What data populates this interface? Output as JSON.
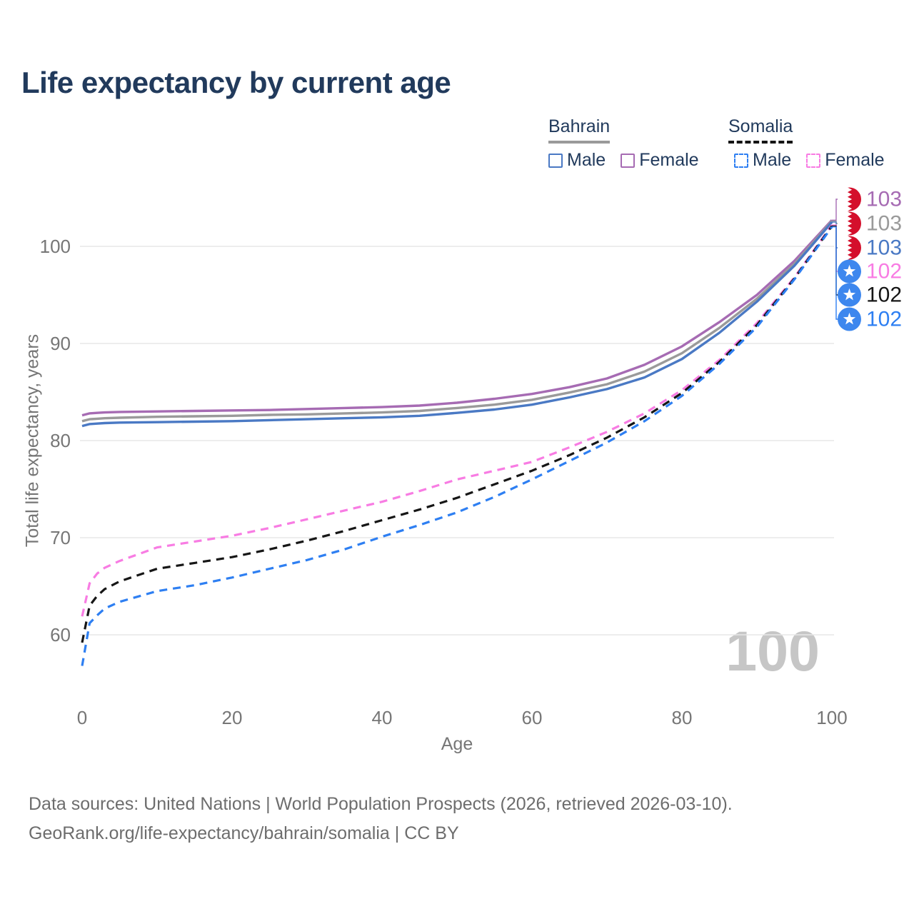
{
  "title": "Life expectancy by current age",
  "watermark": "100",
  "legend": {
    "groups": [
      {
        "name": "Bahrain",
        "style": "solid",
        "items": [
          {
            "label": "Male",
            "color": "#4a79c4"
          },
          {
            "label": "Female",
            "color": "#a66bb3"
          }
        ]
      },
      {
        "name": "Somalia",
        "style": "dashed",
        "items": [
          {
            "label": "Male",
            "color": "#2e7ff2"
          },
          {
            "label": "Female",
            "color": "#f87ce3"
          }
        ]
      }
    ]
  },
  "chart_data": {
    "type": "line",
    "title": "Life expectancy by current age",
    "xlabel": "Age",
    "ylabel": "Total life expectancy, years",
    "xlim": [
      0,
      100
    ],
    "ylim": [
      56,
      104
    ],
    "xticks": [
      0,
      20,
      40,
      60,
      80,
      100
    ],
    "yticks": [
      60,
      70,
      80,
      90,
      100
    ],
    "grid": "horizontal",
    "legend_position": "top-right",
    "x": [
      0,
      1,
      2,
      3,
      5,
      10,
      15,
      20,
      25,
      30,
      35,
      40,
      45,
      50,
      55,
      60,
      65,
      70,
      75,
      80,
      85,
      90,
      95,
      100
    ],
    "series": [
      {
        "name": "Bahrain Female",
        "country": "Bahrain",
        "sex": "Female",
        "color": "#a66bb3",
        "dashed": false,
        "end_label": "103",
        "values": [
          82.6,
          82.8,
          82.85,
          82.9,
          82.95,
          83.0,
          83.05,
          83.1,
          83.15,
          83.25,
          83.35,
          83.45,
          83.6,
          83.9,
          84.3,
          84.8,
          85.5,
          86.4,
          87.8,
          89.7,
          92.2,
          95.0,
          98.5,
          102.7
        ]
      },
      {
        "name": "Bahrain Both sexes",
        "country": "Bahrain",
        "sex": "Both sexes",
        "color": "#9a9a9a",
        "dashed": false,
        "end_label": "103",
        "values": [
          82.0,
          82.2,
          82.25,
          82.3,
          82.35,
          82.45,
          82.5,
          82.55,
          82.65,
          82.7,
          82.8,
          82.9,
          83.05,
          83.35,
          83.7,
          84.2,
          84.95,
          85.8,
          87.1,
          89.0,
          91.6,
          94.6,
          98.2,
          102.6
        ]
      },
      {
        "name": "Bahrain Male",
        "country": "Bahrain",
        "sex": "Male",
        "color": "#4a79c4",
        "dashed": false,
        "end_label": "103",
        "values": [
          81.5,
          81.7,
          81.75,
          81.8,
          81.85,
          81.9,
          81.95,
          82.0,
          82.1,
          82.2,
          82.3,
          82.4,
          82.55,
          82.85,
          83.2,
          83.7,
          84.45,
          85.3,
          86.5,
          88.4,
          91.1,
          94.3,
          98.0,
          102.5
        ]
      },
      {
        "name": "Somalia Female",
        "country": "Somalia",
        "sex": "Female",
        "color": "#f87ce3",
        "dashed": true,
        "end_label": "102",
        "values": [
          61.9,
          65.3,
          66.3,
          66.9,
          67.6,
          69.0,
          69.6,
          70.2,
          71.0,
          71.9,
          72.8,
          73.7,
          74.8,
          76.0,
          76.9,
          77.8,
          79.3,
          80.9,
          82.8,
          85.2,
          88.3,
          92.1,
          96.8,
          102.2
        ]
      },
      {
        "name": "Somalia Both sexes",
        "country": "Somalia",
        "sex": "Both sexes",
        "color": "#161616",
        "dashed": true,
        "end_label": "102",
        "values": [
          59.2,
          63.0,
          64.0,
          64.7,
          65.5,
          66.8,
          67.4,
          68.0,
          68.8,
          69.7,
          70.7,
          71.8,
          72.9,
          74.1,
          75.5,
          76.9,
          78.5,
          80.3,
          82.4,
          84.9,
          88.1,
          91.9,
          96.7,
          102.1
        ]
      },
      {
        "name": "Somalia Male",
        "country": "Somalia",
        "sex": "Male",
        "color": "#2e7ff2",
        "dashed": true,
        "end_label": "102",
        "values": [
          56.8,
          61.2,
          62.0,
          62.7,
          63.4,
          64.5,
          65.1,
          65.9,
          66.8,
          67.7,
          68.8,
          70.1,
          71.3,
          72.6,
          74.2,
          76.0,
          77.9,
          79.8,
          82.0,
          84.6,
          87.9,
          91.7,
          96.6,
          102.0
        ]
      }
    ]
  },
  "footer": {
    "line1": "Data sources: United Nations | World Population Prospects (2026, retrieved 2026-03-10).",
    "line2": "GeoRank.org/life-expectancy/bahrain/somalia | CC BY"
  },
  "colors": {
    "title": "#213a5c",
    "grid": "#e7e7e7",
    "axis_text": "#767676",
    "watermark": "#c6c6c6",
    "footer": "#6d6d6d",
    "legend_text": "#213a5c",
    "bahrain_flag_red": "#d40f2c",
    "somalia_flag_blue": "#3d87ee"
  }
}
